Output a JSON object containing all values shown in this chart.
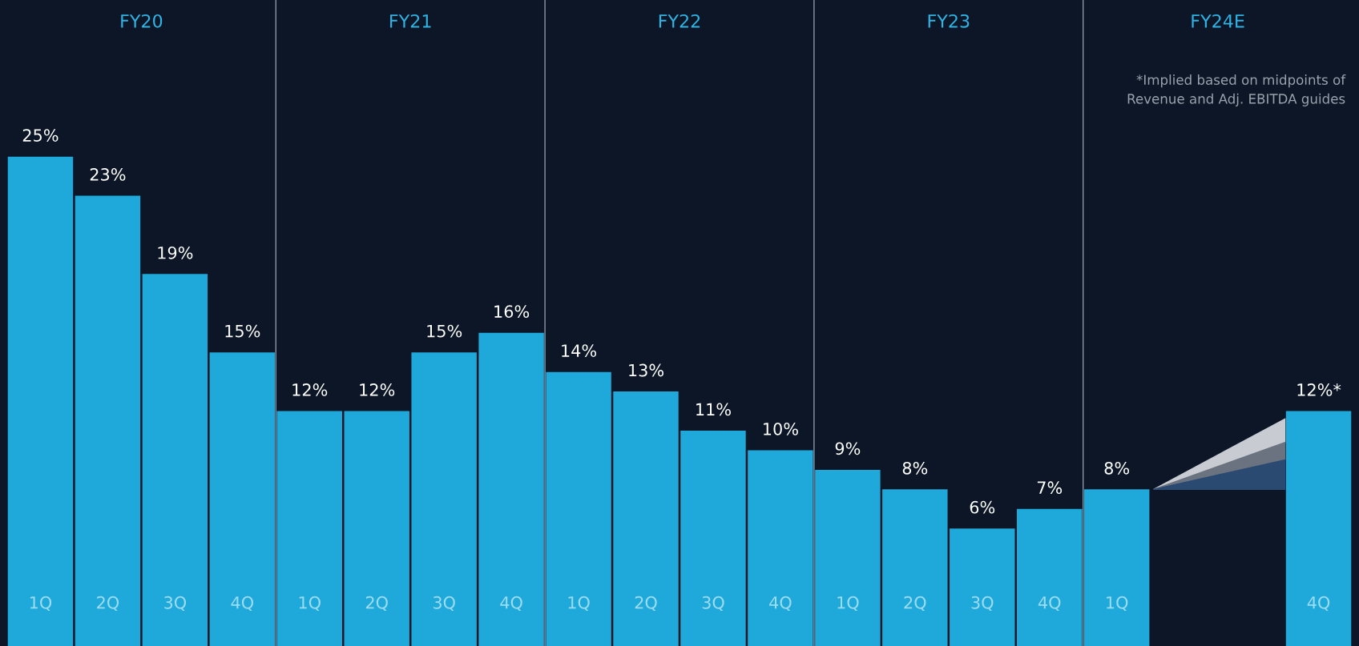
{
  "chart_data": {
    "type": "bar",
    "categories": [
      "1Q",
      "2Q",
      "3Q",
      "4Q",
      "1Q",
      "2Q",
      "3Q",
      "4Q",
      "1Q",
      "2Q",
      "3Q",
      "4Q",
      "1Q",
      "2Q",
      "3Q",
      "4Q",
      "1Q",
      null,
      null,
      "4Q"
    ],
    "values": [
      25,
      23,
      19,
      15,
      12,
      12,
      15,
      16,
      14,
      13,
      11,
      10,
      9,
      8,
      6,
      7,
      8,
      null,
      null,
      12
    ],
    "value_labels": [
      "25%",
      "23%",
      "19%",
      "15%",
      "12%",
      "12%",
      "15%",
      "16%",
      "14%",
      "13%",
      "11%",
      "10%",
      "9%",
      "8%",
      "6%",
      "7%",
      "8%",
      null,
      null,
      "12%*"
    ],
    "color": "#1fa9da",
    "ylim": [
      0,
      33
    ],
    "tick_labels": "x",
    "grid": false,
    "annotations": [
      "FY20",
      "FY21",
      "FY22",
      "FY23",
      "FY24E",
      "*Implied based on midpoints of\nRevenue and Adj. EBITDA guides"
    ]
  }
}
